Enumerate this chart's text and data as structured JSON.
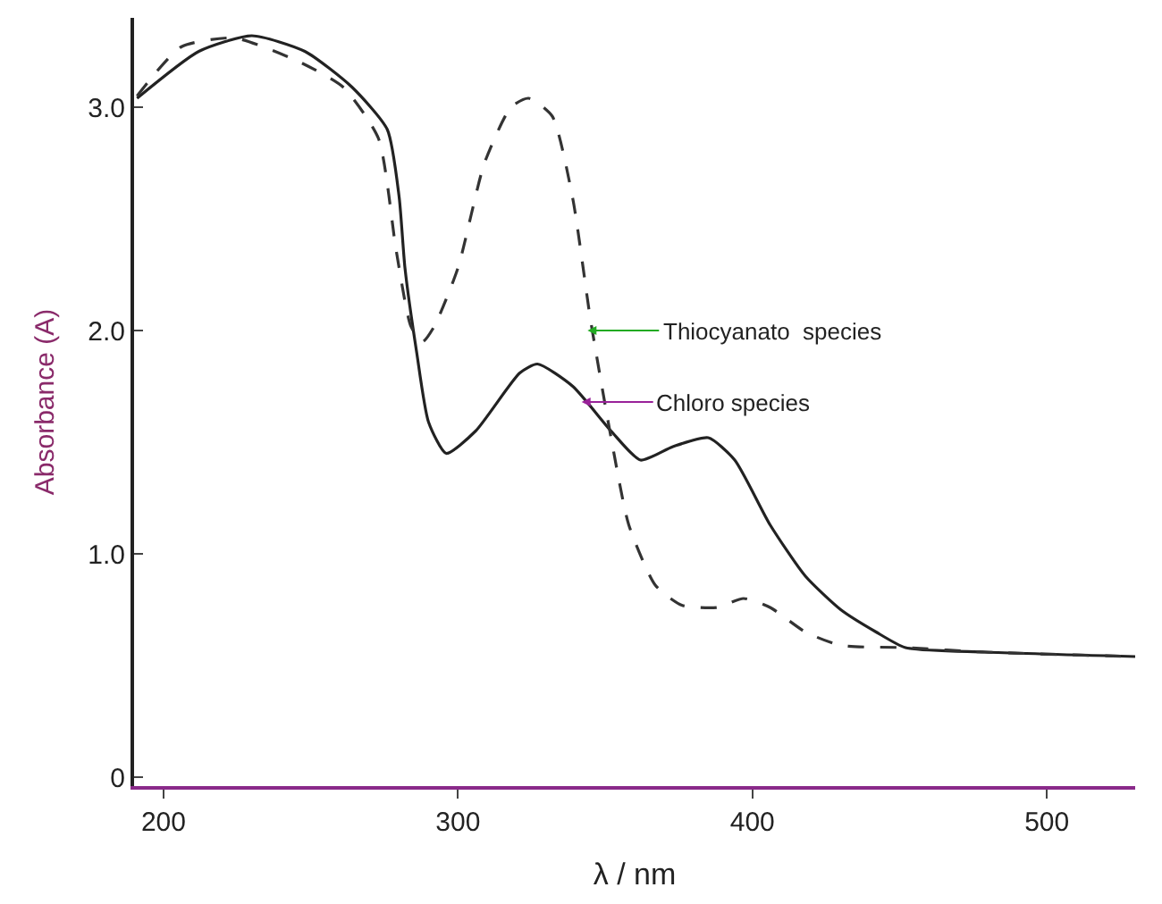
{
  "chart_data": {
    "type": "line",
    "xlabel": "λ / nm",
    "ylabel": "Absorbance (A)",
    "xlim": [
      190,
      530
    ],
    "ylim": [
      -0.04,
      3.4
    ],
    "xticks": [
      200,
      300,
      400,
      500
    ],
    "yticks": [
      0,
      {
        "value": 1,
        "label": "1.0"
      },
      {
        "value": 2,
        "label": "2.0"
      },
      {
        "value": 3,
        "label": "3.0"
      }
    ],
    "marker": "none",
    "series": [
      {
        "color": "#222222",
        "line_style": "solid",
        "x": [
          191,
          212,
          230,
          248,
          264,
          276,
          280,
          282,
          286,
          290,
          296,
          306,
          321,
          327,
          339,
          352,
          362,
          373,
          385,
          394,
          406,
          418,
          430,
          442,
          452,
          479,
          530
        ],
        "values": [
          3.04,
          3.25,
          3.32,
          3.25,
          3.09,
          2.9,
          2.6,
          2.28,
          1.9,
          1.59,
          1.45,
          1.55,
          1.81,
          1.85,
          1.75,
          1.55,
          1.42,
          1.48,
          1.52,
          1.42,
          1.13,
          0.9,
          0.75,
          0.65,
          0.58,
          0.56,
          0.54
        ]
      },
      {
        "color": "#333333",
        "line_style": "dashed",
        "x": [
          191,
          206,
          224,
          245,
          261,
          273,
          279,
          284,
          288,
          292,
          300,
          309,
          318,
          324,
          332,
          339,
          345,
          352,
          358,
          367,
          376,
          388,
          397,
          406,
          418,
          430,
          452,
          479,
          530
        ],
        "values": [
          3.05,
          3.27,
          3.31,
          3.21,
          3.09,
          2.86,
          2.36,
          2.02,
          1.95,
          2.02,
          2.28,
          2.75,
          3.0,
          3.04,
          2.96,
          2.59,
          2.05,
          1.52,
          1.13,
          0.86,
          0.77,
          0.76,
          0.8,
          0.76,
          0.65,
          0.59,
          0.58,
          0.56,
          0.54
        ]
      }
    ],
    "annotations": [
      {
        "text": "Thiocyanato  species",
        "x": 344,
        "y": 2.0
      },
      {
        "text": "Chloro species",
        "x": 342,
        "y": 1.68
      }
    ]
  }
}
